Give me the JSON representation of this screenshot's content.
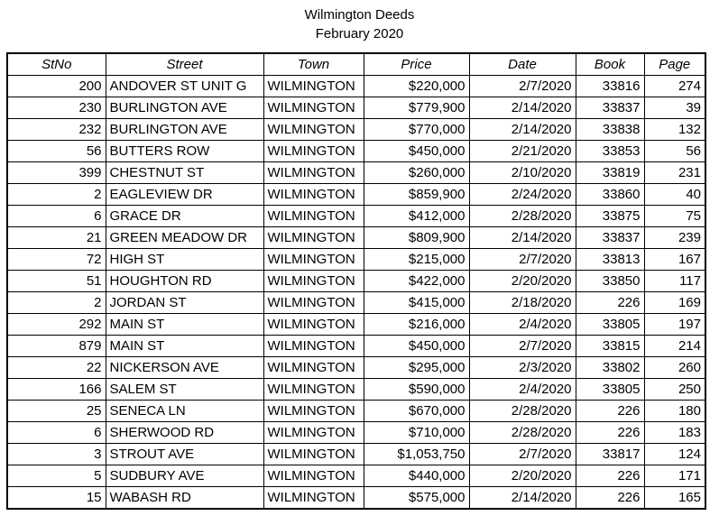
{
  "title": "Wilmington Deeds",
  "subtitle": "February 2020",
  "columns": [
    "StNo",
    "Street",
    "Town",
    "Price",
    "Date",
    "Book",
    "Page"
  ],
  "rows": [
    {
      "stno": "200",
      "street": "ANDOVER ST UNIT G",
      "town": "WILMINGTON",
      "price": "$220,000",
      "date": "2/7/2020",
      "book": "33816",
      "page": "274"
    },
    {
      "stno": "230",
      "street": "BURLINGTON AVE",
      "town": "WILMINGTON",
      "price": "$779,900",
      "date": "2/14/2020",
      "book": "33837",
      "page": "39"
    },
    {
      "stno": "232",
      "street": "BURLINGTON AVE",
      "town": "WILMINGTON",
      "price": "$770,000",
      "date": "2/14/2020",
      "book": "33838",
      "page": "132"
    },
    {
      "stno": "56",
      "street": "BUTTERS ROW",
      "town": "WILMINGTON",
      "price": "$450,000",
      "date": "2/21/2020",
      "book": "33853",
      "page": "56"
    },
    {
      "stno": "399",
      "street": "CHESTNUT ST",
      "town": "WILMINGTON",
      "price": "$260,000",
      "date": "2/10/2020",
      "book": "33819",
      "page": "231"
    },
    {
      "stno": "2",
      "street": "EAGLEVIEW DR",
      "town": "WILMINGTON",
      "price": "$859,900",
      "date": "2/24/2020",
      "book": "33860",
      "page": "40"
    },
    {
      "stno": "6",
      "street": "GRACE DR",
      "town": "WILMINGTON",
      "price": "$412,000",
      "date": "2/28/2020",
      "book": "33875",
      "page": "75"
    },
    {
      "stno": "21",
      "street": "GREEN MEADOW DR",
      "town": "WILMINGTON",
      "price": "$809,900",
      "date": "2/14/2020",
      "book": "33837",
      "page": "239"
    },
    {
      "stno": "72",
      "street": "HIGH ST",
      "town": "WILMINGTON",
      "price": "$215,000",
      "date": "2/7/2020",
      "book": "33813",
      "page": "167"
    },
    {
      "stno": "51",
      "street": "HOUGHTON RD",
      "town": "WILMINGTON",
      "price": "$422,000",
      "date": "2/20/2020",
      "book": "33850",
      "page": "117"
    },
    {
      "stno": "2",
      "street": "JORDAN ST",
      "town": "WILMINGTON",
      "price": "$415,000",
      "date": "2/18/2020",
      "book": "226",
      "page": "169"
    },
    {
      "stno": "292",
      "street": "MAIN ST",
      "town": "WILMINGTON",
      "price": "$216,000",
      "date": "2/4/2020",
      "book": "33805",
      "page": "197"
    },
    {
      "stno": "879",
      "street": "MAIN ST",
      "town": "WILMINGTON",
      "price": "$450,000",
      "date": "2/7/2020",
      "book": "33815",
      "page": "214"
    },
    {
      "stno": "22",
      "street": "NICKERSON AVE",
      "town": "WILMINGTON",
      "price": "$295,000",
      "date": "2/3/2020",
      "book": "33802",
      "page": "260"
    },
    {
      "stno": "166",
      "street": "SALEM ST",
      "town": "WILMINGTON",
      "price": "$590,000",
      "date": "2/4/2020",
      "book": "33805",
      "page": "250"
    },
    {
      "stno": "25",
      "street": "SENECA LN",
      "town": "WILMINGTON",
      "price": "$670,000",
      "date": "2/28/2020",
      "book": "226",
      "page": "180"
    },
    {
      "stno": "6",
      "street": "SHERWOOD RD",
      "town": "WILMINGTON",
      "price": "$710,000",
      "date": "2/28/2020",
      "book": "226",
      "page": "183"
    },
    {
      "stno": "3",
      "street": "STROUT AVE",
      "town": "WILMINGTON",
      "price": "$1,053,750",
      "date": "2/7/2020",
      "book": "33817",
      "page": "124"
    },
    {
      "stno": "5",
      "street": "SUDBURY AVE",
      "town": "WILMINGTON",
      "price": "$440,000",
      "date": "2/20/2020",
      "book": "226",
      "page": "171"
    },
    {
      "stno": "15",
      "street": "WABASH RD",
      "town": "WILMINGTON",
      "price": "$575,000",
      "date": "2/14/2020",
      "book": "226",
      "page": "165"
    }
  ]
}
